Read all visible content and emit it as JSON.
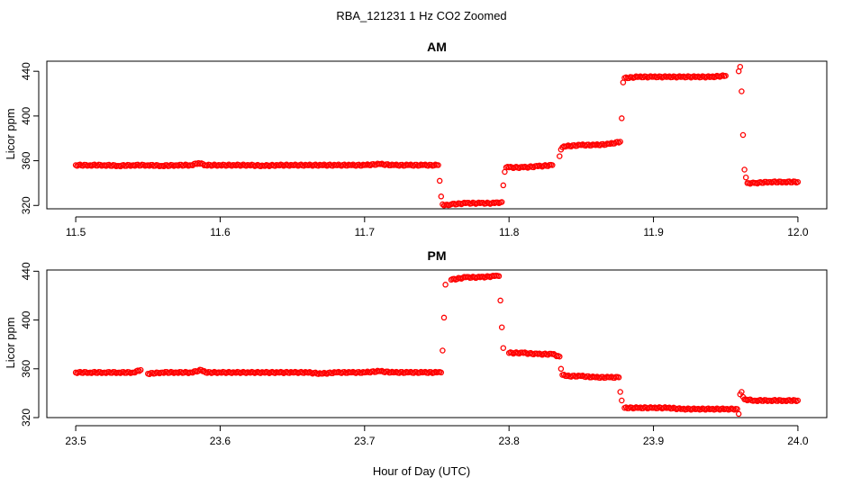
{
  "figure": {
    "title": "RBA_121231  1 Hz CO2 Zoomed",
    "xlabel": "Hour of Day (UTC)"
  },
  "point_color": "#ff0000",
  "chart_data": [
    {
      "type": "scatter",
      "title": "AM",
      "ylabel": "Licor ppm",
      "xlim": [
        11.48,
        12.02
      ],
      "ylim": [
        317,
        449
      ],
      "xticks": [
        11.5,
        11.6,
        11.7,
        11.8,
        11.9,
        12.0
      ],
      "xtick_labels": [
        "11.5",
        "11.6",
        "11.7",
        "11.8",
        "11.9",
        "12.0"
      ],
      "yticks": [
        320,
        360,
        400,
        440
      ],
      "ytick_labels": [
        "320",
        "360",
        "400",
        "440"
      ],
      "grid": false,
      "series": [
        {
          "x": [
            11.5,
            11.51,
            11.52,
            11.53,
            11.54,
            11.55,
            11.56,
            11.57,
            11.58,
            11.585,
            11.59,
            11.6,
            11.61,
            11.62,
            11.63,
            11.64,
            11.65,
            11.66,
            11.67,
            11.68,
            11.69,
            11.7,
            11.71,
            11.72,
            11.73,
            11.74,
            11.751,
            11.752,
            11.753,
            11.754,
            11.755,
            11.76,
            11.77,
            11.78,
            11.79,
            11.795,
            11.796,
            11.797,
            11.798,
            11.8,
            11.81,
            11.82,
            11.83,
            11.835,
            11.836,
            11.837,
            11.84,
            11.85,
            11.86,
            11.87,
            11.877,
            11.878,
            11.879,
            11.88,
            11.89,
            11.9,
            11.91,
            11.92,
            11.93,
            11.94,
            11.95,
            11.959,
            11.96,
            11.961,
            11.962,
            11.963,
            11.964,
            11.965,
            11.97,
            11.98,
            11.99,
            12.0
          ],
          "y": [
            356,
            356,
            356,
            355.5,
            356,
            356,
            355.5,
            356,
            356,
            358,
            356,
            356,
            356,
            356,
            355.5,
            356,
            356,
            356,
            356,
            356,
            356,
            356,
            357,
            356,
            356,
            356,
            356,
            342,
            328,
            321,
            320,
            321,
            322,
            322,
            322,
            323,
            338,
            350,
            354,
            354,
            354,
            355,
            356,
            364,
            370,
            372,
            373,
            374,
            374,
            375,
            377,
            398,
            430,
            434,
            435,
            435,
            435,
            435,
            435,
            435,
            436,
            440,
            444,
            422,
            383,
            352,
            345,
            340,
            340,
            341,
            341,
            341
          ]
        }
      ]
    },
    {
      "type": "scatter",
      "title": "PM",
      "ylabel": "Licor ppm",
      "xlim": [
        23.48,
        24.02
      ],
      "ylim": [
        320,
        441
      ],
      "xticks": [
        23.5,
        23.6,
        23.7,
        23.8,
        23.9,
        24.0
      ],
      "xtick_labels": [
        "23.5",
        "23.6",
        "23.7",
        "23.8",
        "23.9",
        "24.0"
      ],
      "yticks": [
        320,
        360,
        400,
        440
      ],
      "ytick_labels": [
        "320",
        "360",
        "400",
        "440"
      ],
      "grid": false,
      "series": [
        {
          "x": [
            23.5,
            23.51,
            23.52,
            23.53,
            23.54,
            23.545,
            23.55,
            23.56,
            23.57,
            23.58,
            23.587,
            23.59,
            23.6,
            23.61,
            23.62,
            23.63,
            23.64,
            23.65,
            23.66,
            23.67,
            23.68,
            23.69,
            23.7,
            23.71,
            23.72,
            23.73,
            23.74,
            23.75,
            23.753,
            23.754,
            23.755,
            23.756,
            23.76,
            23.77,
            23.78,
            23.79,
            23.793,
            23.794,
            23.795,
            23.796,
            23.8,
            23.81,
            23.82,
            23.83,
            23.835,
            23.836,
            23.837,
            23.84,
            23.85,
            23.86,
            23.87,
            23.876,
            23.877,
            23.878,
            23.88,
            23.89,
            23.9,
            23.91,
            23.92,
            23.93,
            23.94,
            23.95,
            23.958,
            23.959,
            23.96,
            23.961,
            23.962,
            23.963,
            23.97,
            23.98,
            23.99,
            24.0
          ],
          "y": [
            357,
            357,
            357,
            357,
            357,
            359,
            356,
            357,
            357,
            357,
            359,
            357,
            357,
            357,
            357,
            357,
            357,
            357,
            357,
            356,
            357,
            357,
            357,
            358,
            357,
            357,
            357,
            357,
            357,
            375,
            402,
            429,
            433,
            435,
            435,
            436,
            436,
            416,
            394,
            377,
            373,
            373,
            372,
            372,
            370,
            360,
            355,
            354,
            354,
            353,
            353,
            353,
            341,
            334,
            328,
            328,
            328,
            328,
            327,
            327,
            327,
            327,
            327,
            323,
            339,
            341,
            337,
            335,
            334,
            334,
            334,
            334
          ]
        }
      ]
    }
  ]
}
